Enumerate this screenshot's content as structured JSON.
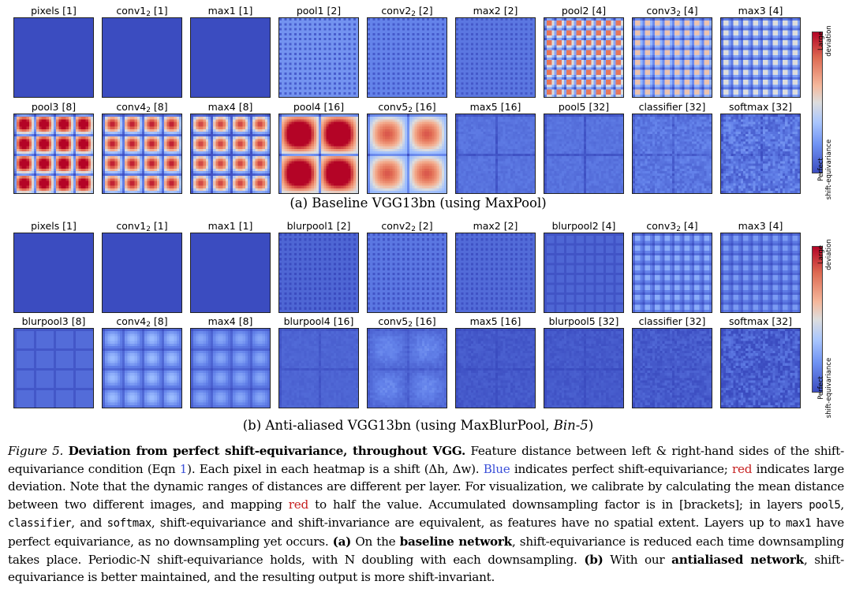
{
  "panel_a": {
    "caption": "(a) Baseline VGG13bn (using MaxPool)",
    "colorbar": {
      "top_label": "Large\ndeviation",
      "bottom_label": "Perfect\nshift-equivariance"
    },
    "rows": [
      [
        {
          "label": "pixels [1]",
          "pattern": "flat",
          "level": 0.0
        },
        {
          "label": "conv1",
          "sub": "2",
          "suffix": " [1]",
          "pattern": "flat",
          "level": 0.0
        },
        {
          "label": "max1 [1]",
          "pattern": "flat",
          "level": 0.0
        },
        {
          "label": "pool1 [2]",
          "pattern": "dots",
          "period": 2,
          "level": 0.22,
          "contrast": 0.1
        },
        {
          "label": "conv2",
          "sub": "2",
          "suffix": " [2]",
          "pattern": "dots",
          "period": 2,
          "level": 0.18,
          "contrast": 0.08
        },
        {
          "label": "max2 [2]",
          "pattern": "dots",
          "period": 2,
          "level": 0.14,
          "contrast": 0.06
        },
        {
          "label": "pool2 [4]",
          "pattern": "blobs",
          "period": 4,
          "level": 0.58,
          "contrast": 0.3
        },
        {
          "label": "conv3",
          "sub": "2",
          "suffix": " [4]",
          "pattern": "blobs",
          "period": 4,
          "level": 0.42,
          "contrast": 0.22
        },
        {
          "label": "max3 [4]",
          "pattern": "blobs",
          "period": 4,
          "level": 0.36,
          "contrast": 0.2
        }
      ],
      [
        {
          "label": "pool3 [8]",
          "pattern": "blobs",
          "period": 8,
          "level": 0.78,
          "contrast": 0.4
        },
        {
          "label": "conv4",
          "sub": "2",
          "suffix": " [8]",
          "pattern": "blobs",
          "period": 8,
          "level": 0.62,
          "contrast": 0.35
        },
        {
          "label": "max4 [8]",
          "pattern": "blobs",
          "period": 8,
          "level": 0.55,
          "contrast": 0.35
        },
        {
          "label": "pool4 [16]",
          "pattern": "blobs",
          "period": 16,
          "level": 0.92,
          "contrast": 0.45
        },
        {
          "label": "conv5",
          "sub": "2",
          "suffix": " [16]",
          "pattern": "blobs",
          "period": 16,
          "level": 0.6,
          "contrast": 0.25
        },
        {
          "label": "max5 [16]",
          "pattern": "grid",
          "period": 16,
          "level": 0.12,
          "contrast": 0.08,
          "noise": 0.03
        },
        {
          "label": "pool5 [32]",
          "pattern": "grid",
          "period": 16,
          "level": 0.12,
          "contrast": 0.08,
          "noise": 0.03
        },
        {
          "label": "classifier [32]",
          "pattern": "grid",
          "period": 16,
          "level": 0.14,
          "contrast": 0.06,
          "noise": 0.06
        },
        {
          "label": "softmax [32]",
          "pattern": "grid",
          "period": 16,
          "level": 0.14,
          "contrast": 0.05,
          "noise": 0.1
        }
      ]
    ]
  },
  "panel_b": {
    "caption_prefix": "(b) Anti-aliased VGG13bn (using MaxBlurPool, ",
    "caption_italic": "Bin-5",
    "caption_suffix": ")",
    "colorbar": {
      "top_label": "Large\ndeviation",
      "bottom_label": "Perfect\nshift-equivariance"
    },
    "rows": [
      [
        {
          "label": "pixels [1]",
          "pattern": "flat",
          "level": 0.0
        },
        {
          "label": "conv1",
          "sub": "2",
          "suffix": " [1]",
          "pattern": "flat",
          "level": 0.0
        },
        {
          "label": "max1 [1]",
          "pattern": "flat",
          "level": 0.0
        },
        {
          "label": "blurpool1 [2]",
          "pattern": "dots",
          "period": 2,
          "level": 0.08,
          "contrast": 0.05
        },
        {
          "label": "conv2",
          "sub": "2",
          "suffix": " [2]",
          "pattern": "dots",
          "period": 2,
          "level": 0.14,
          "contrast": 0.07
        },
        {
          "label": "max2 [2]",
          "pattern": "dots",
          "period": 2,
          "level": 0.1,
          "contrast": 0.05
        },
        {
          "label": "blurpool2 [4]",
          "pattern": "grid",
          "period": 4,
          "level": 0.08,
          "contrast": 0.05
        },
        {
          "label": "conv3",
          "sub": "2",
          "suffix": " [4]",
          "pattern": "blobs",
          "period": 4,
          "level": 0.24,
          "contrast": 0.12
        },
        {
          "label": "max3 [4]",
          "pattern": "blobs",
          "period": 4,
          "level": 0.2,
          "contrast": 0.1
        }
      ],
      [
        {
          "label": "blurpool3 [8]",
          "pattern": "grid",
          "period": 8,
          "level": 0.1,
          "contrast": 0.06
        },
        {
          "label": "conv4",
          "sub": "2",
          "suffix": " [8]",
          "pattern": "blobs",
          "period": 8,
          "level": 0.26,
          "contrast": 0.12
        },
        {
          "label": "max4 [8]",
          "pattern": "blobs",
          "period": 8,
          "level": 0.22,
          "contrast": 0.1
        },
        {
          "label": "blurpool4 [16]",
          "pattern": "grid",
          "period": 16,
          "level": 0.08,
          "contrast": 0.04,
          "noise": 0.02
        },
        {
          "label": "conv5",
          "sub": "2",
          "suffix": " [16]",
          "pattern": "blobs",
          "period": 16,
          "level": 0.16,
          "contrast": 0.06,
          "noise": 0.03
        },
        {
          "label": "max5 [16]",
          "pattern": "grid",
          "period": 16,
          "level": 0.04,
          "contrast": 0.03,
          "noise": 0.03
        },
        {
          "label": "blurpool5 [32]",
          "pattern": "grid",
          "period": 16,
          "level": 0.04,
          "contrast": 0.03,
          "noise": 0.03
        },
        {
          "label": "classifier [32]",
          "pattern": "grid",
          "period": 16,
          "level": 0.05,
          "contrast": 0.02,
          "noise": 0.05
        },
        {
          "label": "softmax [32]",
          "pattern": "grid",
          "period": 16,
          "level": 0.06,
          "contrast": 0.02,
          "noise": 0.1
        }
      ]
    ]
  },
  "caption": {
    "fig_label": "Figure 5.",
    "title": "Deviation from perfect shift-equivariance, throughout VGG.",
    "t1": " Feature distance between left & right-hand sides of the shift-equivariance condition (Eqn ",
    "eqn": "1",
    "t2": "). Each pixel in each heatmap is a shift (Δh, Δw). ",
    "blue": "Blue",
    "t3": " indicates perfect shift-equivariance; ",
    "red1": "red",
    "t4": " indicates large deviation. Note that the dynamic ranges of distances are different per layer. For visualization, we calibrate by calculating the mean distance between two different images, and mapping ",
    "red2": "red",
    "t5": " to half the value. Accumulated downsampling factor is in [brackets]; in layers ",
    "m1": "pool5",
    "t6": ", ",
    "m2": "classifier",
    "t7": ", and ",
    "m3": "softmax",
    "t8": ", shift-equivariance and shift-invariance are equivalent, as features have no spatial extent. Layers up to ",
    "m4": "max1",
    "t9": " have perfect equivariance, as no downsampling yet occurs. ",
    "a_label": "(a)",
    "t10": " On the ",
    "a_bold": "baseline network",
    "t11": ", shift-equivariance is reduced each time downsampling takes place. Periodic-N shift-equivariance holds, with N doubling with each downsampling. ",
    "b_label": "(b)",
    "t12": " With our ",
    "b_bold": "antialiased network",
    "t13": ", shift-equivariance is better maintained, and the resulting output is more shift-invariant."
  }
}
